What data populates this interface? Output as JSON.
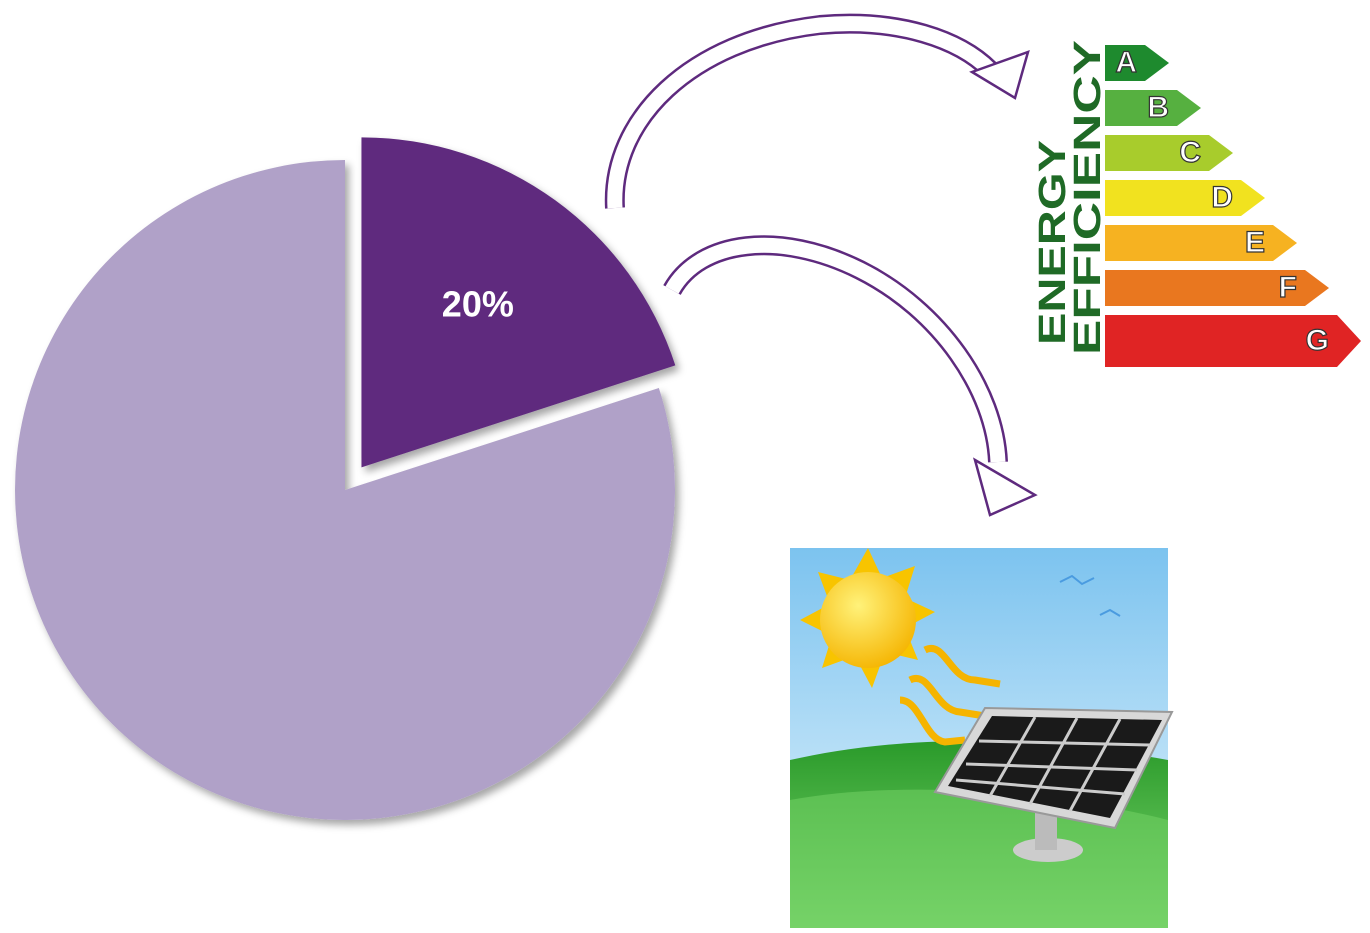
{
  "chart_data": {
    "type": "pie",
    "values": [
      20,
      80
    ],
    "value_labels": [
      "20%",
      null
    ],
    "colors": [
      "#5e2a7e",
      "#b0a1c8"
    ]
  },
  "energy_label": {
    "title": [
      "ENERGY",
      "EFFICIENCY"
    ],
    "classes": [
      "A",
      "B",
      "C",
      "D",
      "E",
      "F",
      "G"
    ]
  }
}
